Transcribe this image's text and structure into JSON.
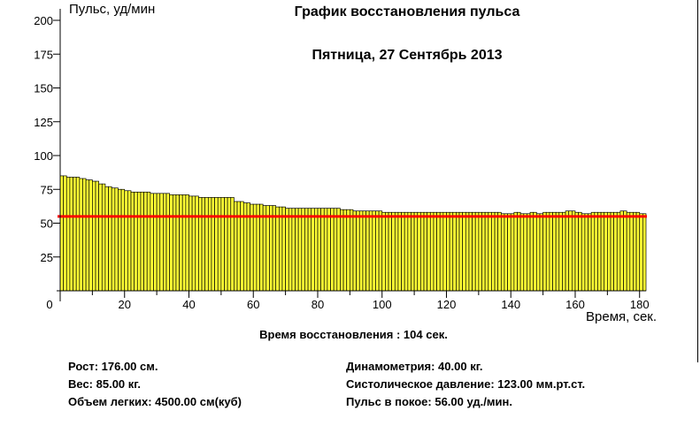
{
  "chart_data": {
    "type": "bar",
    "title": "График восстановления пульса",
    "subtitle": "Пятница, 27 Сентябрь 2013",
    "ylabel": "Пульс, уд/мин",
    "xlabel": "Время, сек.",
    "ylim": [
      0,
      200
    ],
    "xlim": [
      0,
      182
    ],
    "y_ticks": [
      "25",
      "50",
      "75",
      "100",
      "125",
      "150",
      "175",
      "200"
    ],
    "x_ticks": [
      "0",
      "20",
      "40",
      "60",
      "80",
      "100",
      "120",
      "140",
      "160",
      "180"
    ],
    "bar_color": "#ffff33",
    "reference_line": {
      "value": 55,
      "color": "#ff0000"
    },
    "series": [
      {
        "segments": [
          {
            "x0": 0,
            "x1": 2,
            "y": 85
          },
          {
            "x0": 2,
            "x1": 3,
            "y": 84
          },
          {
            "x0": 3,
            "x1": 6,
            "y": 84
          },
          {
            "x0": 6,
            "x1": 8,
            "y": 83
          },
          {
            "x0": 8,
            "x1": 10,
            "y": 82
          },
          {
            "x0": 10,
            "x1": 12,
            "y": 81
          },
          {
            "x0": 12,
            "x1": 14,
            "y": 79
          },
          {
            "x0": 14,
            "x1": 16,
            "y": 77
          },
          {
            "x0": 16,
            "x1": 18,
            "y": 76
          },
          {
            "x0": 18,
            "x1": 20,
            "y": 75
          },
          {
            "x0": 20,
            "x1": 22,
            "y": 74
          },
          {
            "x0": 22,
            "x1": 28,
            "y": 73
          },
          {
            "x0": 28,
            "x1": 34,
            "y": 72
          },
          {
            "x0": 34,
            "x1": 40,
            "y": 71
          },
          {
            "x0": 40,
            "x1": 43,
            "y": 70
          },
          {
            "x0": 43,
            "x1": 48,
            "y": 69
          },
          {
            "x0": 48,
            "x1": 54,
            "y": 69
          },
          {
            "x0": 54,
            "x1": 57,
            "y": 66
          },
          {
            "x0": 57,
            "x1": 59,
            "y": 65
          },
          {
            "x0": 59,
            "x1": 63,
            "y": 64
          },
          {
            "x0": 63,
            "x1": 67,
            "y": 63
          },
          {
            "x0": 67,
            "x1": 70,
            "y": 62
          },
          {
            "x0": 70,
            "x1": 87,
            "y": 61
          },
          {
            "x0": 87,
            "x1": 91,
            "y": 60
          },
          {
            "x0": 91,
            "x1": 100,
            "y": 59
          },
          {
            "x0": 100,
            "x1": 137,
            "y": 58
          },
          {
            "x0": 137,
            "x1": 141,
            "y": 57
          },
          {
            "x0": 141,
            "x1": 143,
            "y": 58
          },
          {
            "x0": 143,
            "x1": 146,
            "y": 57
          },
          {
            "x0": 146,
            "x1": 148,
            "y": 58
          },
          {
            "x0": 148,
            "x1": 150,
            "y": 57
          },
          {
            "x0": 150,
            "x1": 157,
            "y": 58
          },
          {
            "x0": 157,
            "x1": 160,
            "y": 59
          },
          {
            "x0": 160,
            "x1": 162,
            "y": 58
          },
          {
            "x0": 162,
            "x1": 165,
            "y": 57
          },
          {
            "x0": 165,
            "x1": 170,
            "y": 58
          },
          {
            "x0": 170,
            "x1": 174,
            "y": 58
          },
          {
            "x0": 174,
            "x1": 176,
            "y": 59
          },
          {
            "x0": 176,
            "x1": 180,
            "y": 58
          },
          {
            "x0": 180,
            "x1": 182,
            "y": 57
          }
        ]
      }
    ]
  },
  "summary": {
    "recovery_time": "Время восстановления : 104 сек.",
    "left": [
      "Рост: 176.00 см.",
      "Вес: 85.00 кг.",
      "Объем легких: 4500.00 см(куб)"
    ],
    "right": [
      "Динамометрия: 40.00 кг.",
      "Систолическое давление: 123.00 мм.рт.ст.",
      "Пульс в покое: 56.00 уд./мин."
    ]
  }
}
